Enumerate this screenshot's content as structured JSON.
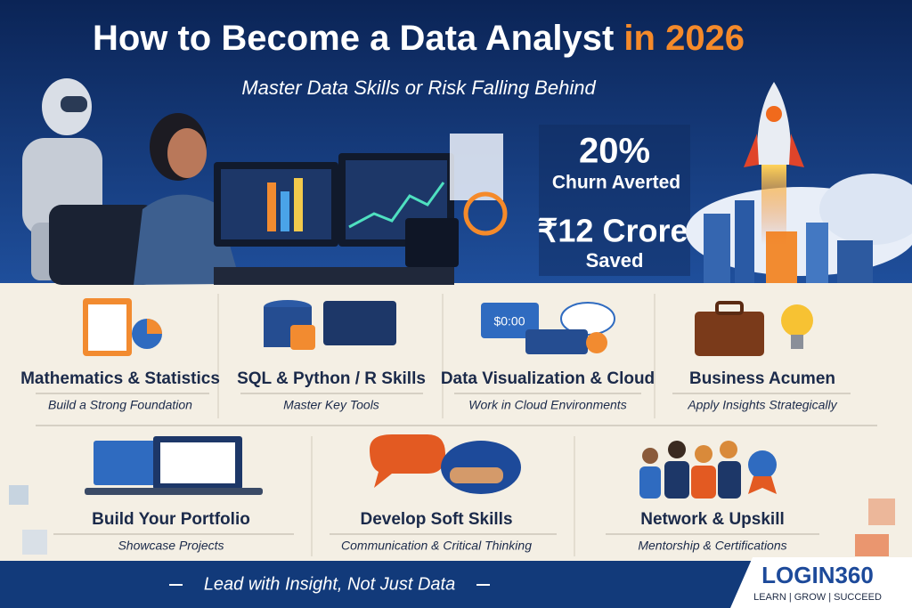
{
  "header": {
    "title": "How to Become a Data Analyst",
    "title_highlight": "in 2026",
    "subtitle": "Master Data Skills or Risk Falling Behind"
  },
  "stats": [
    {
      "value": "20%",
      "label": "Churn Averted"
    },
    {
      "value": "₹12 Crore",
      "label": "Saved"
    }
  ],
  "skills": [
    {
      "title": "Mathematics & Statistics",
      "subtitle": "Build a Strong Foundation"
    },
    {
      "title": "SQL & Python / R Skills",
      "subtitle": "Master Key Tools"
    },
    {
      "title": "Data Visualization & Cloud",
      "subtitle": "Work in Cloud Environments"
    },
    {
      "title": "Business Acumen",
      "subtitle": "Apply Insights Strategically"
    },
    {
      "title": "Build Your Portfolio",
      "subtitle": "Showcase Projects"
    },
    {
      "title": "Develop Soft Skills",
      "subtitle": "Communication & Critical Thinking"
    },
    {
      "title": "Network & Upskill",
      "subtitle": "Mentorship & Certifications"
    }
  ],
  "footer": {
    "tagline": "Lead with Insight, Not Just Data",
    "brand": "LOGIN360",
    "brand_tagline": "LEARN | GROW | SUCCEED"
  }
}
